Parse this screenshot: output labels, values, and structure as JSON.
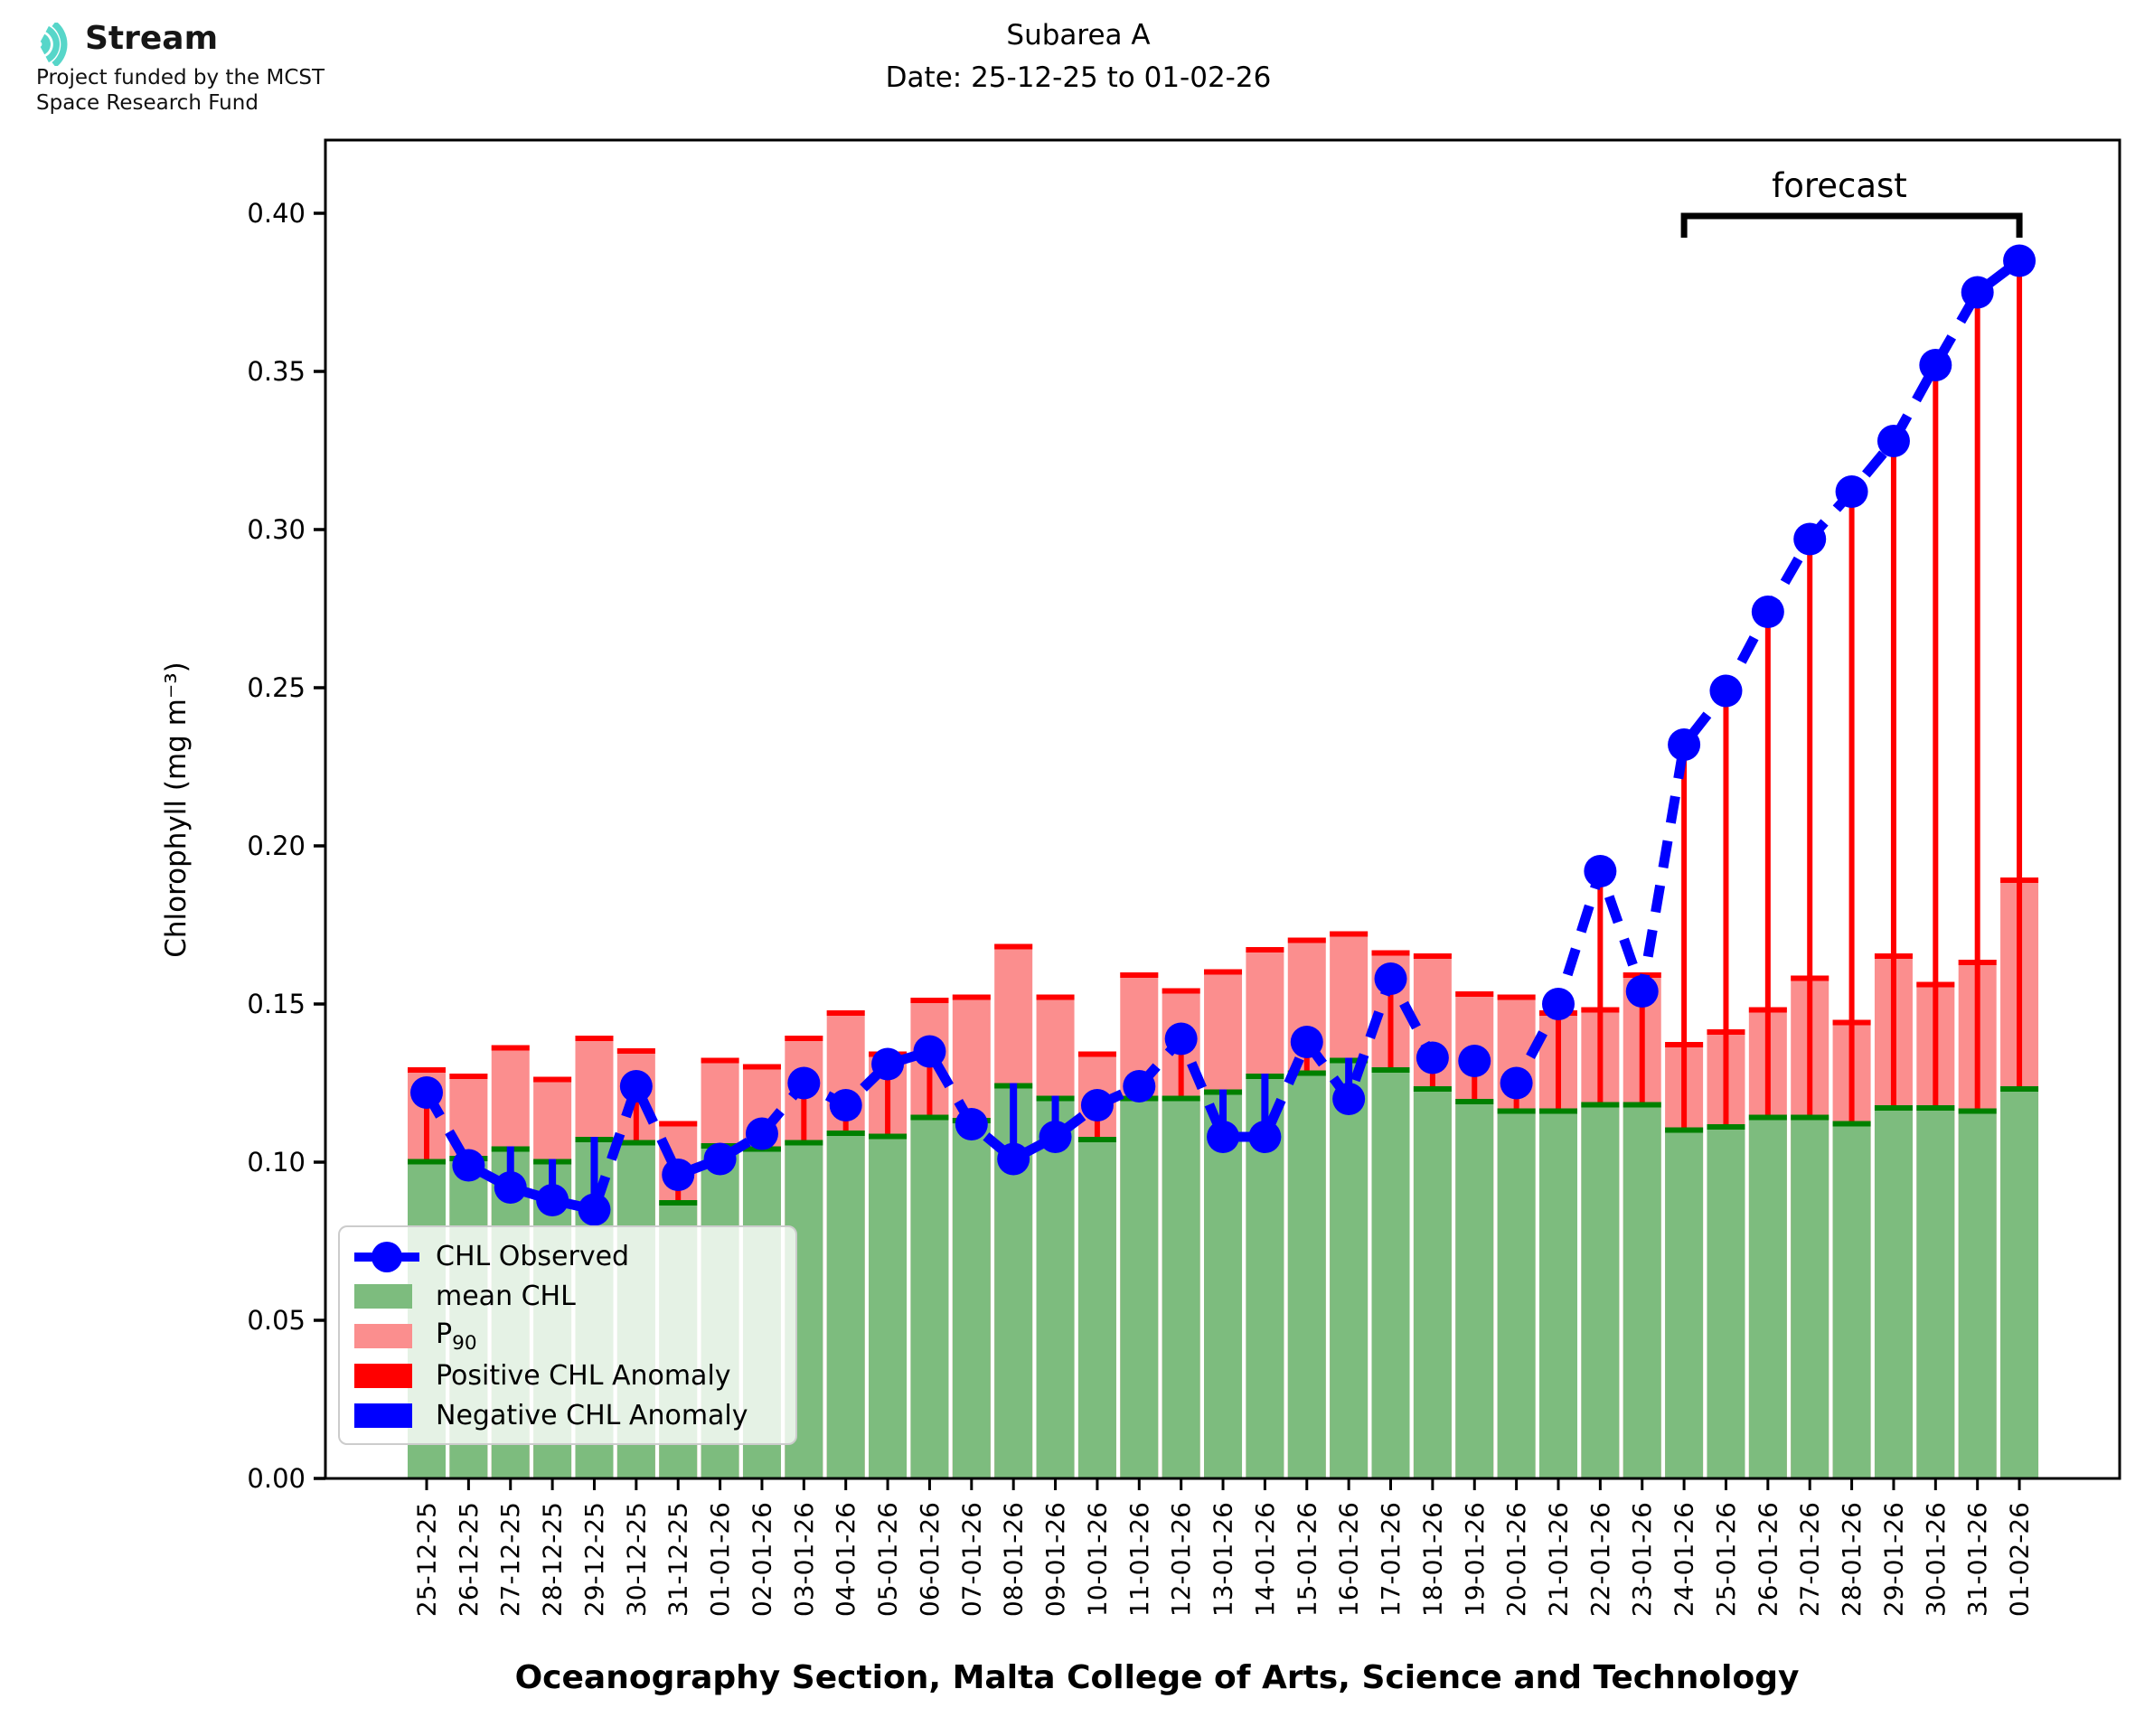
{
  "logo": {
    "brand": "Stream",
    "subtitle_line1": "Project funded by the MCST",
    "subtitle_line2": "Space Research Fund",
    "icon_color": "#57d6c9"
  },
  "title": {
    "line1": "Subarea A",
    "line2": "Date: 25-12-25 to 01-02-26"
  },
  "axes": {
    "ylabel": "Chlorophyll (mg m⁻³)",
    "xlabel": "Oceanography Section, Malta College of Arts, Science and Technology",
    "ytick_labels": [
      "0.00",
      "0.05",
      "0.10",
      "0.15",
      "0.20",
      "0.25",
      "0.30",
      "0.35",
      "0.40"
    ]
  },
  "annotations": {
    "forecast_label": "forecast"
  },
  "legend": {
    "items": [
      {
        "label": "CHL Observed",
        "type": "marker-line",
        "color": "#0000ff"
      },
      {
        "label": "mean CHL",
        "type": "patch",
        "color": "#7dbc7e"
      },
      {
        "label": "P",
        "sub": "90",
        "type": "patch",
        "color": "#fb8e8e"
      },
      {
        "label": "Positive CHL Anomaly",
        "type": "patch",
        "color": "#ff0000"
      },
      {
        "label": "Negative CHL Anomaly",
        "type": "patch",
        "color": "#0000ff"
      }
    ]
  },
  "colors": {
    "mean_bar": "#7dbc7e",
    "mean_cap": "#008000",
    "p90_bar": "#fb8e8e",
    "p90_cap": "#ff0000",
    "observed": "#0000ff",
    "positive_anomaly": "#ff0000",
    "negative_anomaly": "#0000ff",
    "axis": "#000000"
  },
  "chart_data": {
    "type": "bar",
    "subtype": "bars-with-observed-line-and-anomalies",
    "title": "Subarea A  Date: 25-12-25 to 01-02-26",
    "xlabel": "Oceanography Section, Malta College of Arts, Science and Technology",
    "ylabel": "Chlorophyll (mg m⁻³)",
    "ylim": [
      0,
      0.423
    ],
    "yticks": [
      0.0,
      0.05,
      0.1,
      0.15,
      0.2,
      0.25,
      0.3,
      0.35,
      0.4
    ],
    "grid": false,
    "legend_position": "lower left",
    "categories": [
      "25-12-25",
      "26-12-25",
      "27-12-25",
      "28-12-25",
      "29-12-25",
      "30-12-25",
      "31-12-25",
      "01-01-26",
      "02-01-26",
      "03-01-26",
      "04-01-26",
      "05-01-26",
      "06-01-26",
      "07-01-26",
      "08-01-26",
      "09-01-26",
      "10-01-26",
      "11-01-26",
      "12-01-26",
      "13-01-26",
      "14-01-26",
      "15-01-26",
      "16-01-26",
      "17-01-26",
      "18-01-26",
      "19-01-26",
      "20-01-26",
      "21-01-26",
      "22-01-26",
      "23-01-26",
      "24-01-26",
      "25-01-26",
      "26-01-26",
      "27-01-26",
      "28-01-26",
      "29-01-26",
      "30-01-26",
      "31-01-26",
      "01-02-26"
    ],
    "series": [
      {
        "name": "mean CHL",
        "role": "bar",
        "values": [
          0.101,
          0.102,
          0.105,
          0.101,
          0.108,
          0.107,
          0.088,
          0.106,
          0.105,
          0.107,
          0.11,
          0.109,
          0.115,
          0.114,
          0.125,
          0.121,
          0.108,
          0.121,
          0.121,
          0.123,
          0.128,
          0.129,
          0.133,
          0.13,
          0.124,
          0.12,
          0.117,
          0.117,
          0.119,
          0.119,
          0.111,
          0.112,
          0.115,
          0.115,
          0.113,
          0.118,
          0.118,
          0.117,
          0.124
        ]
      },
      {
        "name": "P90",
        "role": "bar",
        "values": [
          0.13,
          0.128,
          0.137,
          0.127,
          0.14,
          0.136,
          0.113,
          0.133,
          0.131,
          0.14,
          0.148,
          0.135,
          0.152,
          0.153,
          0.169,
          0.153,
          0.135,
          0.16,
          0.155,
          0.161,
          0.168,
          0.171,
          0.173,
          0.167,
          0.166,
          0.154,
          0.153,
          0.148,
          0.149,
          0.16,
          0.138,
          0.142,
          0.149,
          0.159,
          0.145,
          0.166,
          0.157,
          0.164,
          0.19
        ]
      },
      {
        "name": "CHL Observed",
        "role": "line",
        "values": [
          0.122,
          0.099,
          0.092,
          0.088,
          0.085,
          0.124,
          0.096,
          0.101,
          0.109,
          0.125,
          0.118,
          0.131,
          0.135,
          0.112,
          0.101,
          0.108,
          0.118,
          0.124,
          0.139,
          0.108,
          0.108,
          0.138,
          0.12,
          0.158,
          0.133,
          0.132,
          0.125,
          0.15,
          0.192,
          0.154,
          0.232,
          0.249,
          0.274,
          0.297,
          0.312,
          0.328,
          0.352,
          0.375,
          0.385
        ]
      }
    ],
    "anomaly_rule": "red line where observed above mean CHL, blue line where observed below mean CHL",
    "forecast": {
      "label": "forecast",
      "start_category": "24-01-26",
      "end_category": "01-02-26"
    }
  }
}
